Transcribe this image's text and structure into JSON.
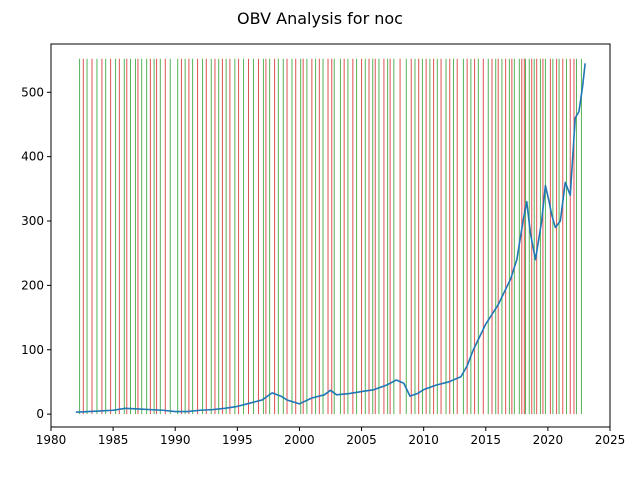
{
  "chart_data": {
    "type": "line",
    "title": "OBV Analysis for noc",
    "xlabel": "",
    "ylabel": "",
    "xlim": [
      1980,
      2025
    ],
    "ylim": [
      -20,
      575
    ],
    "x_ticks": [
      1980,
      1985,
      1990,
      1995,
      2000,
      2005,
      2010,
      2015,
      2020,
      2025
    ],
    "y_ticks": [
      0,
      100,
      200,
      300,
      400,
      500
    ],
    "grid": false,
    "legend": "none",
    "series": [
      {
        "color": "#1f77b4",
        "x": [
          1982.0,
          1983.0,
          1984.0,
          1985.0,
          1986.0,
          1987.0,
          1988.0,
          1989.0,
          1990.0,
          1991.0,
          1992.0,
          1993.0,
          1994.0,
          1995.0,
          1996.0,
          1997.0,
          1997.8,
          1998.5,
          1999.0,
          2000.0,
          2001.0,
          2002.0,
          2002.5,
          2003.0,
          2004.0,
          2005.0,
          2006.0,
          2007.0,
          2007.8,
          2008.4,
          2008.9,
          2009.5,
          2010.0,
          2011.0,
          2012.0,
          2013.0,
          2013.5,
          2014.0,
          2015.0,
          2016.0,
          2017.0,
          2017.5,
          2018.0,
          2018.3,
          2018.6,
          2019.0,
          2019.5,
          2019.8,
          2020.1,
          2020.3,
          2020.6,
          2021.0,
          2021.4,
          2021.8,
          2022.2,
          2022.5,
          2022.8,
          2023.0
        ],
        "values": [
          3,
          4,
          5,
          6,
          9,
          8,
          7,
          6,
          4,
          4,
          6,
          7,
          9,
          12,
          17,
          22,
          33,
          28,
          22,
          16,
          25,
          30,
          37,
          30,
          32,
          35,
          38,
          45,
          53,
          48,
          28,
          32,
          38,
          45,
          50,
          58,
          75,
          100,
          140,
          170,
          210,
          240,
          300,
          330,
          280,
          240,
          300,
          355,
          330,
          310,
          290,
          300,
          360,
          340,
          460,
          470,
          510,
          545
        ]
      }
    ],
    "signals": {
      "buy_color": "#2ca02c",
      "sell_color": "#d62728",
      "span": [
        0,
        552
      ],
      "buy": [
        1982.3,
        1982.9,
        1983.7,
        1984.4,
        1985.2,
        1985.9,
        1986.4,
        1986.8,
        1987.3,
        1987.7,
        1988.3,
        1988.8,
        1989.6,
        1990.2,
        1990.8,
        1991.4,
        1992.2,
        1992.9,
        1993.5,
        1994.1,
        1994.8,
        1995.5,
        1996.3,
        1997.1,
        1997.6,
        1998.3,
        1998.7,
        1999.4,
        2000.1,
        2000.6,
        2001.3,
        2001.9,
        2002.8,
        2003.3,
        2003.9,
        2004.6,
        2005.3,
        2005.9,
        2006.4,
        2007.1,
        2007.6,
        2008.6,
        2009.3,
        2009.9,
        2010.5,
        2011.1,
        2011.8,
        2012.4,
        2013.2,
        2013.8,
        2014.4,
        2015.2,
        2015.8,
        2016.3,
        2016.9,
        2017.3,
        2017.7,
        2018.2,
        2018.5,
        2018.9,
        2019.4,
        2019.8,
        2020.4,
        2020.9,
        2021.5,
        2022.3,
        2022.7
      ],
      "sell": [
        1982.6,
        1983.3,
        1984.1,
        1984.8,
        1985.5,
        1986.1,
        1987.0,
        1988.0,
        1988.5,
        1989.2,
        1990.5,
        1991.1,
        1991.8,
        1992.5,
        1993.2,
        1993.8,
        1994.4,
        1995.1,
        1995.9,
        1996.7,
        1997.3,
        1998.0,
        1999.0,
        1999.7,
        2000.3,
        2001.0,
        2001.6,
        2002.3,
        2002.6,
        2003.6,
        2004.3,
        2005.0,
        2005.6,
        2006.1,
        2006.8,
        2007.3,
        2008.1,
        2009.0,
        2009.6,
        2010.2,
        2010.8,
        2011.4,
        2012.1,
        2012.7,
        2013.5,
        2014.1,
        2014.8,
        2015.5,
        2016.0,
        2016.6,
        2017.1,
        2017.9,
        2018.1,
        2018.7,
        2019.1,
        2019.6,
        2020.2,
        2020.7,
        2021.2,
        2021.8,
        2022.1
      ]
    }
  }
}
